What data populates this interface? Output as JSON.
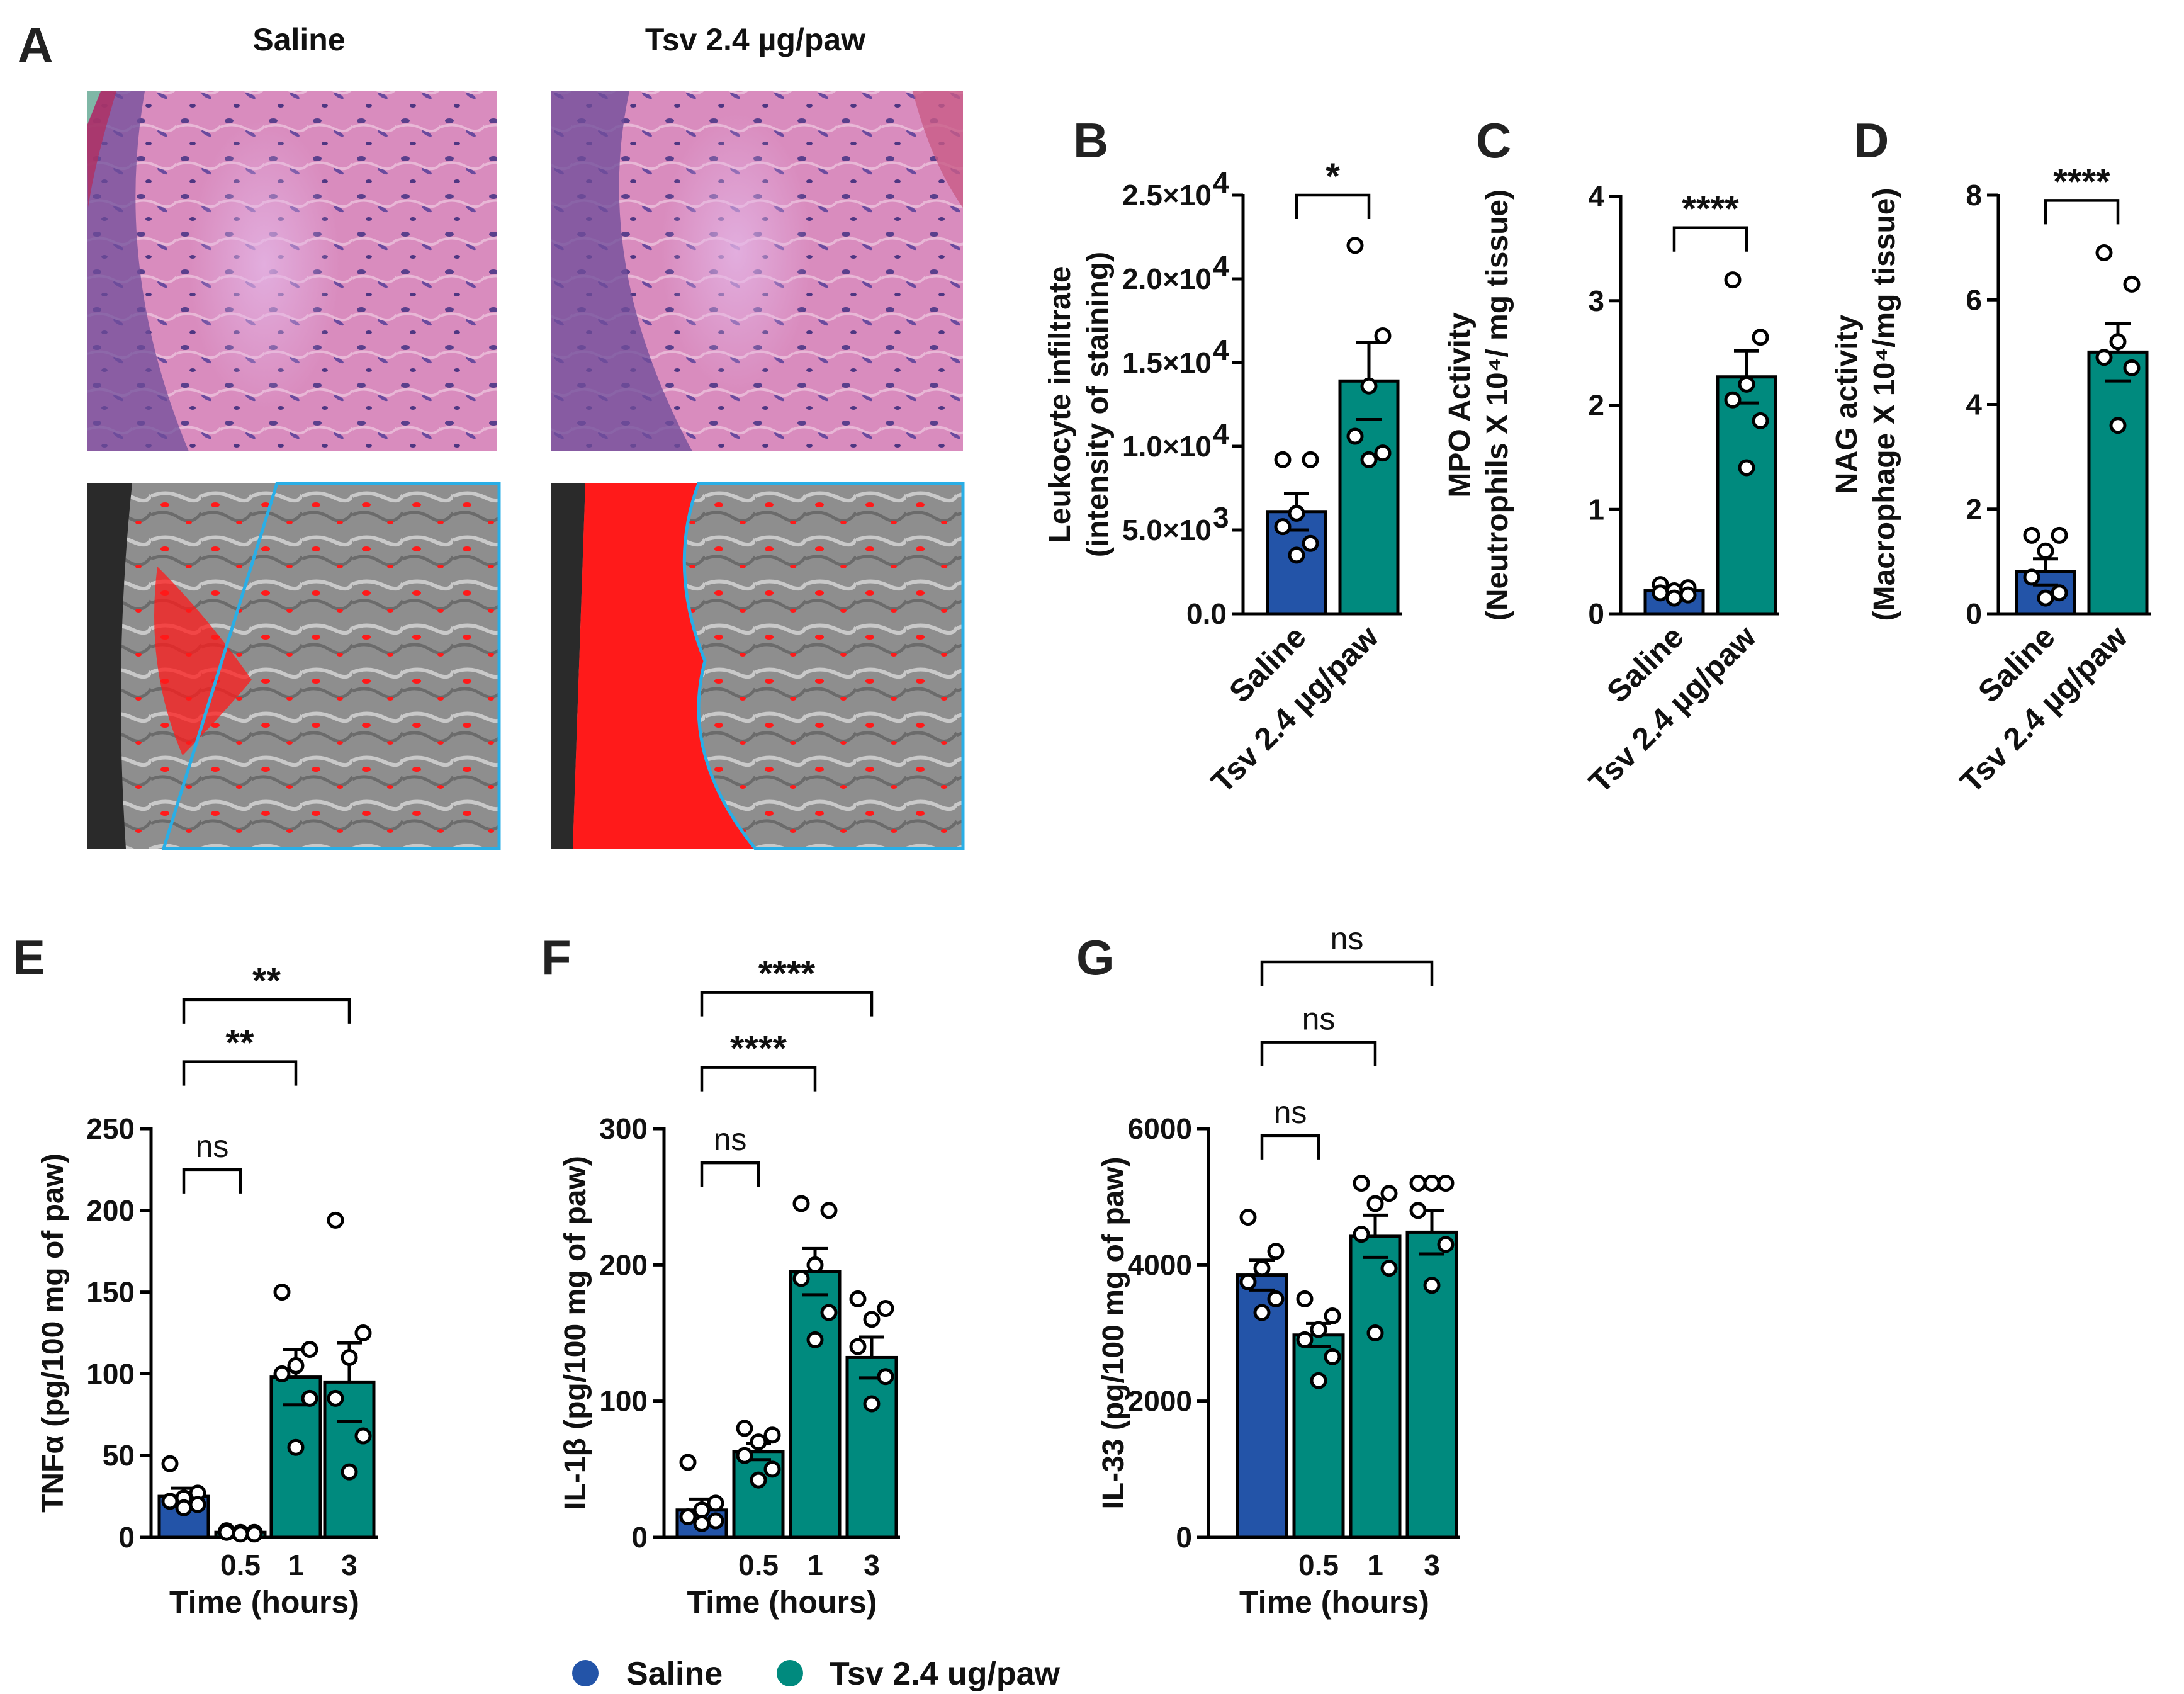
{
  "colors": {
    "saline": "#2354a8",
    "tsv": "#008a7e",
    "outline": "#000000",
    "overlay_red": "#ff0000",
    "outline_blue": "#29aee6"
  },
  "panel_A": {
    "label": "A",
    "col_titles": [
      "Saline",
      "Tsv 2.4 µg/paw"
    ],
    "images": [
      {
        "name": "saline-he-stain",
        "kind": "he"
      },
      {
        "name": "tsv-he-stain",
        "kind": "he"
      },
      {
        "name": "saline-red-overlay",
        "kind": "overlay"
      },
      {
        "name": "tsv-red-overlay",
        "kind": "overlay"
      }
    ]
  },
  "legend": {
    "saline_label": "Saline",
    "tsv_label": "Tsv 2.4 ug/paw"
  },
  "chart_data": [
    {
      "panel": "B",
      "type": "bar",
      "ylabel_lines": [
        "Leukocyte infiltrate",
        "(intensity of staining)"
      ],
      "ylim": [
        0,
        25000
      ],
      "yticks": [
        0,
        5000,
        10000,
        15000,
        20000,
        25000
      ],
      "ytick_labels": [
        "0.0",
        "5.0×10",
        "1.0×10",
        "1.5×10",
        "2.0×10",
        "2.5×10"
      ],
      "ytick_exps": [
        "",
        "3",
        "4",
        "4",
        "4",
        "4"
      ],
      "categories": [
        "Saline",
        "Tsv 2.4 µg/paw"
      ],
      "xlabel": "",
      "bars": [
        {
          "group": "saline",
          "mean": 6100,
          "sem": 1100,
          "points": [
            9200,
            9200,
            6000,
            5200,
            4200,
            3500
          ]
        },
        {
          "group": "tsv",
          "mean": 13900,
          "sem": 2300,
          "points": [
            22000,
            16600,
            13600,
            10600,
            9600,
            9200
          ]
        }
      ],
      "comparisons": [
        {
          "a": 0,
          "b": 1,
          "text": "*",
          "y": 25000
        }
      ]
    },
    {
      "panel": "C",
      "type": "bar",
      "ylabel_lines": [
        "MPO Activity",
        "(Neutrophils X 10⁴/ mg tissue)"
      ],
      "ylim": [
        0,
        4
      ],
      "yticks": [
        0,
        1,
        2,
        3,
        4
      ],
      "ytick_labels": [
        "0",
        "1",
        "2",
        "3",
        "4"
      ],
      "categories": [
        "Saline",
        "Tsv 2.4 µg/paw"
      ],
      "xlabel": "",
      "bars": [
        {
          "group": "saline",
          "mean": 0.22,
          "sem": 0.03,
          "points": [
            0.28,
            0.25,
            0.22,
            0.2,
            0.18,
            0.15
          ]
        },
        {
          "group": "tsv",
          "mean": 2.27,
          "sem": 0.25,
          "points": [
            3.2,
            2.65,
            2.2,
            2.05,
            1.85,
            1.4
          ]
        }
      ],
      "comparisons": [
        {
          "a": 0,
          "b": 1,
          "text": "****",
          "y": 3.7
        }
      ]
    },
    {
      "panel": "D",
      "type": "bar",
      "ylabel_lines": [
        "NAG activity",
        "(Macrophage X 10⁴/mg tissue)"
      ],
      "ylim": [
        0,
        8
      ],
      "yticks": [
        0,
        2,
        4,
        6,
        8
      ],
      "ytick_labels": [
        "0",
        "2",
        "4",
        "6",
        "8"
      ],
      "categories": [
        "Saline",
        "Tsv 2.4 µg/paw"
      ],
      "xlabel": "",
      "bars": [
        {
          "group": "saline",
          "mean": 0.8,
          "sem": 0.25,
          "points": [
            1.5,
            1.5,
            1.2,
            0.7,
            0.4,
            0.3
          ]
        },
        {
          "group": "tsv",
          "mean": 5.0,
          "sem": 0.55,
          "points": [
            6.9,
            6.3,
            5.2,
            4.9,
            4.7,
            3.6
          ]
        }
      ],
      "comparisons": [
        {
          "a": 0,
          "b": 1,
          "text": "****",
          "y": 7.9
        }
      ]
    },
    {
      "panel": "E",
      "type": "bar",
      "ylabel_lines": [
        "TNFα (pg/100 mg of paw)"
      ],
      "ylim": [
        0,
        250
      ],
      "yticks": [
        0,
        50,
        100,
        150,
        200,
        250
      ],
      "ytick_labels": [
        "0",
        "50",
        "100",
        "150",
        "200",
        "250"
      ],
      "categories": [
        "",
        "0.5",
        "1",
        "3"
      ],
      "xlabel": "Time (hours)",
      "bars": [
        {
          "group": "saline",
          "mean": 25,
          "sem": 5,
          "points": [
            45,
            27,
            24,
            22,
            20,
            18
          ]
        },
        {
          "group": "tsv",
          "mean": 3,
          "sem": 1,
          "points": [
            4,
            3,
            3,
            3,
            2,
            2
          ]
        },
        {
          "group": "tsv",
          "mean": 98,
          "sem": 17,
          "points": [
            150,
            115,
            105,
            100,
            85,
            55
          ]
        },
        {
          "group": "tsv",
          "mean": 95,
          "sem": 24,
          "points": [
            194,
            125,
            110,
            85,
            62,
            40
          ]
        }
      ],
      "comparisons": [
        {
          "a": 0,
          "b": 1,
          "text": "ns",
          "y": 225
        },
        {
          "a": 0,
          "b": 2,
          "text": "**",
          "y": 291
        },
        {
          "a": 0,
          "b": 3,
          "text": "**",
          "y": 329
        }
      ]
    },
    {
      "panel": "F",
      "type": "bar",
      "ylabel_lines": [
        "IL-1β (pg/100 mg of paw)"
      ],
      "ylim": [
        0,
        300
      ],
      "yticks": [
        0,
        100,
        200,
        300
      ],
      "ytick_labels": [
        "0",
        "100",
        "200",
        "300"
      ],
      "categories": [
        "",
        "0.5",
        "1",
        "3"
      ],
      "xlabel": "Time (hours)",
      "bars": [
        {
          "group": "saline",
          "mean": 20,
          "sem": 8,
          "points": [
            55,
            25,
            20,
            15,
            12,
            10
          ]
        },
        {
          "group": "tsv",
          "mean": 63,
          "sem": 6,
          "points": [
            80,
            75,
            70,
            60,
            50,
            42
          ]
        },
        {
          "group": "tsv",
          "mean": 195,
          "sem": 17,
          "points": [
            245,
            240,
            200,
            190,
            165,
            145
          ]
        },
        {
          "group": "tsv",
          "mean": 132,
          "sem": 15,
          "points": [
            175,
            168,
            160,
            140,
            118,
            98
          ]
        }
      ],
      "comparisons": [
        {
          "a": 0,
          "b": 1,
          "text": "ns",
          "y": 275
        },
        {
          "a": 0,
          "b": 2,
          "text": "****",
          "y": 345
        },
        {
          "a": 0,
          "b": 3,
          "text": "****",
          "y": 400
        }
      ]
    },
    {
      "panel": "G",
      "type": "bar",
      "ylabel_lines": [
        "IL-33 (pg/100 mg of paw)"
      ],
      "ylim": [
        0,
        6000
      ],
      "yticks": [
        0,
        2000,
        4000,
        6000
      ],
      "ytick_labels": [
        "0",
        "2000",
        "4000",
        "6000"
      ],
      "categories": [
        "",
        "0.5",
        "1",
        "3"
      ],
      "xlabel": "Time (hours)",
      "bars": [
        {
          "group": "saline",
          "mean": 3850,
          "sem": 220,
          "points": [
            4700,
            4200,
            3950,
            3750,
            3500,
            3300
          ]
        },
        {
          "group": "tsv",
          "mean": 2970,
          "sem": 170,
          "points": [
            3500,
            3250,
            3050,
            2900,
            2650,
            2300
          ]
        },
        {
          "group": "tsv",
          "mean": 4420,
          "sem": 310,
          "points": [
            5200,
            5050,
            4900,
            4450,
            3950,
            3000
          ]
        },
        {
          "group": "tsv",
          "mean": 4480,
          "sem": 320,
          "points": [
            5200,
            5200,
            5200,
            4800,
            4300,
            3700
          ]
        }
      ],
      "comparisons": [
        {
          "a": 0,
          "b": 1,
          "text": "ns",
          "y": 5900
        },
        {
          "a": 0,
          "b": 2,
          "text": "ns",
          "y": 7270
        },
        {
          "a": 0,
          "b": 3,
          "text": "ns",
          "y": 8450
        }
      ]
    }
  ]
}
